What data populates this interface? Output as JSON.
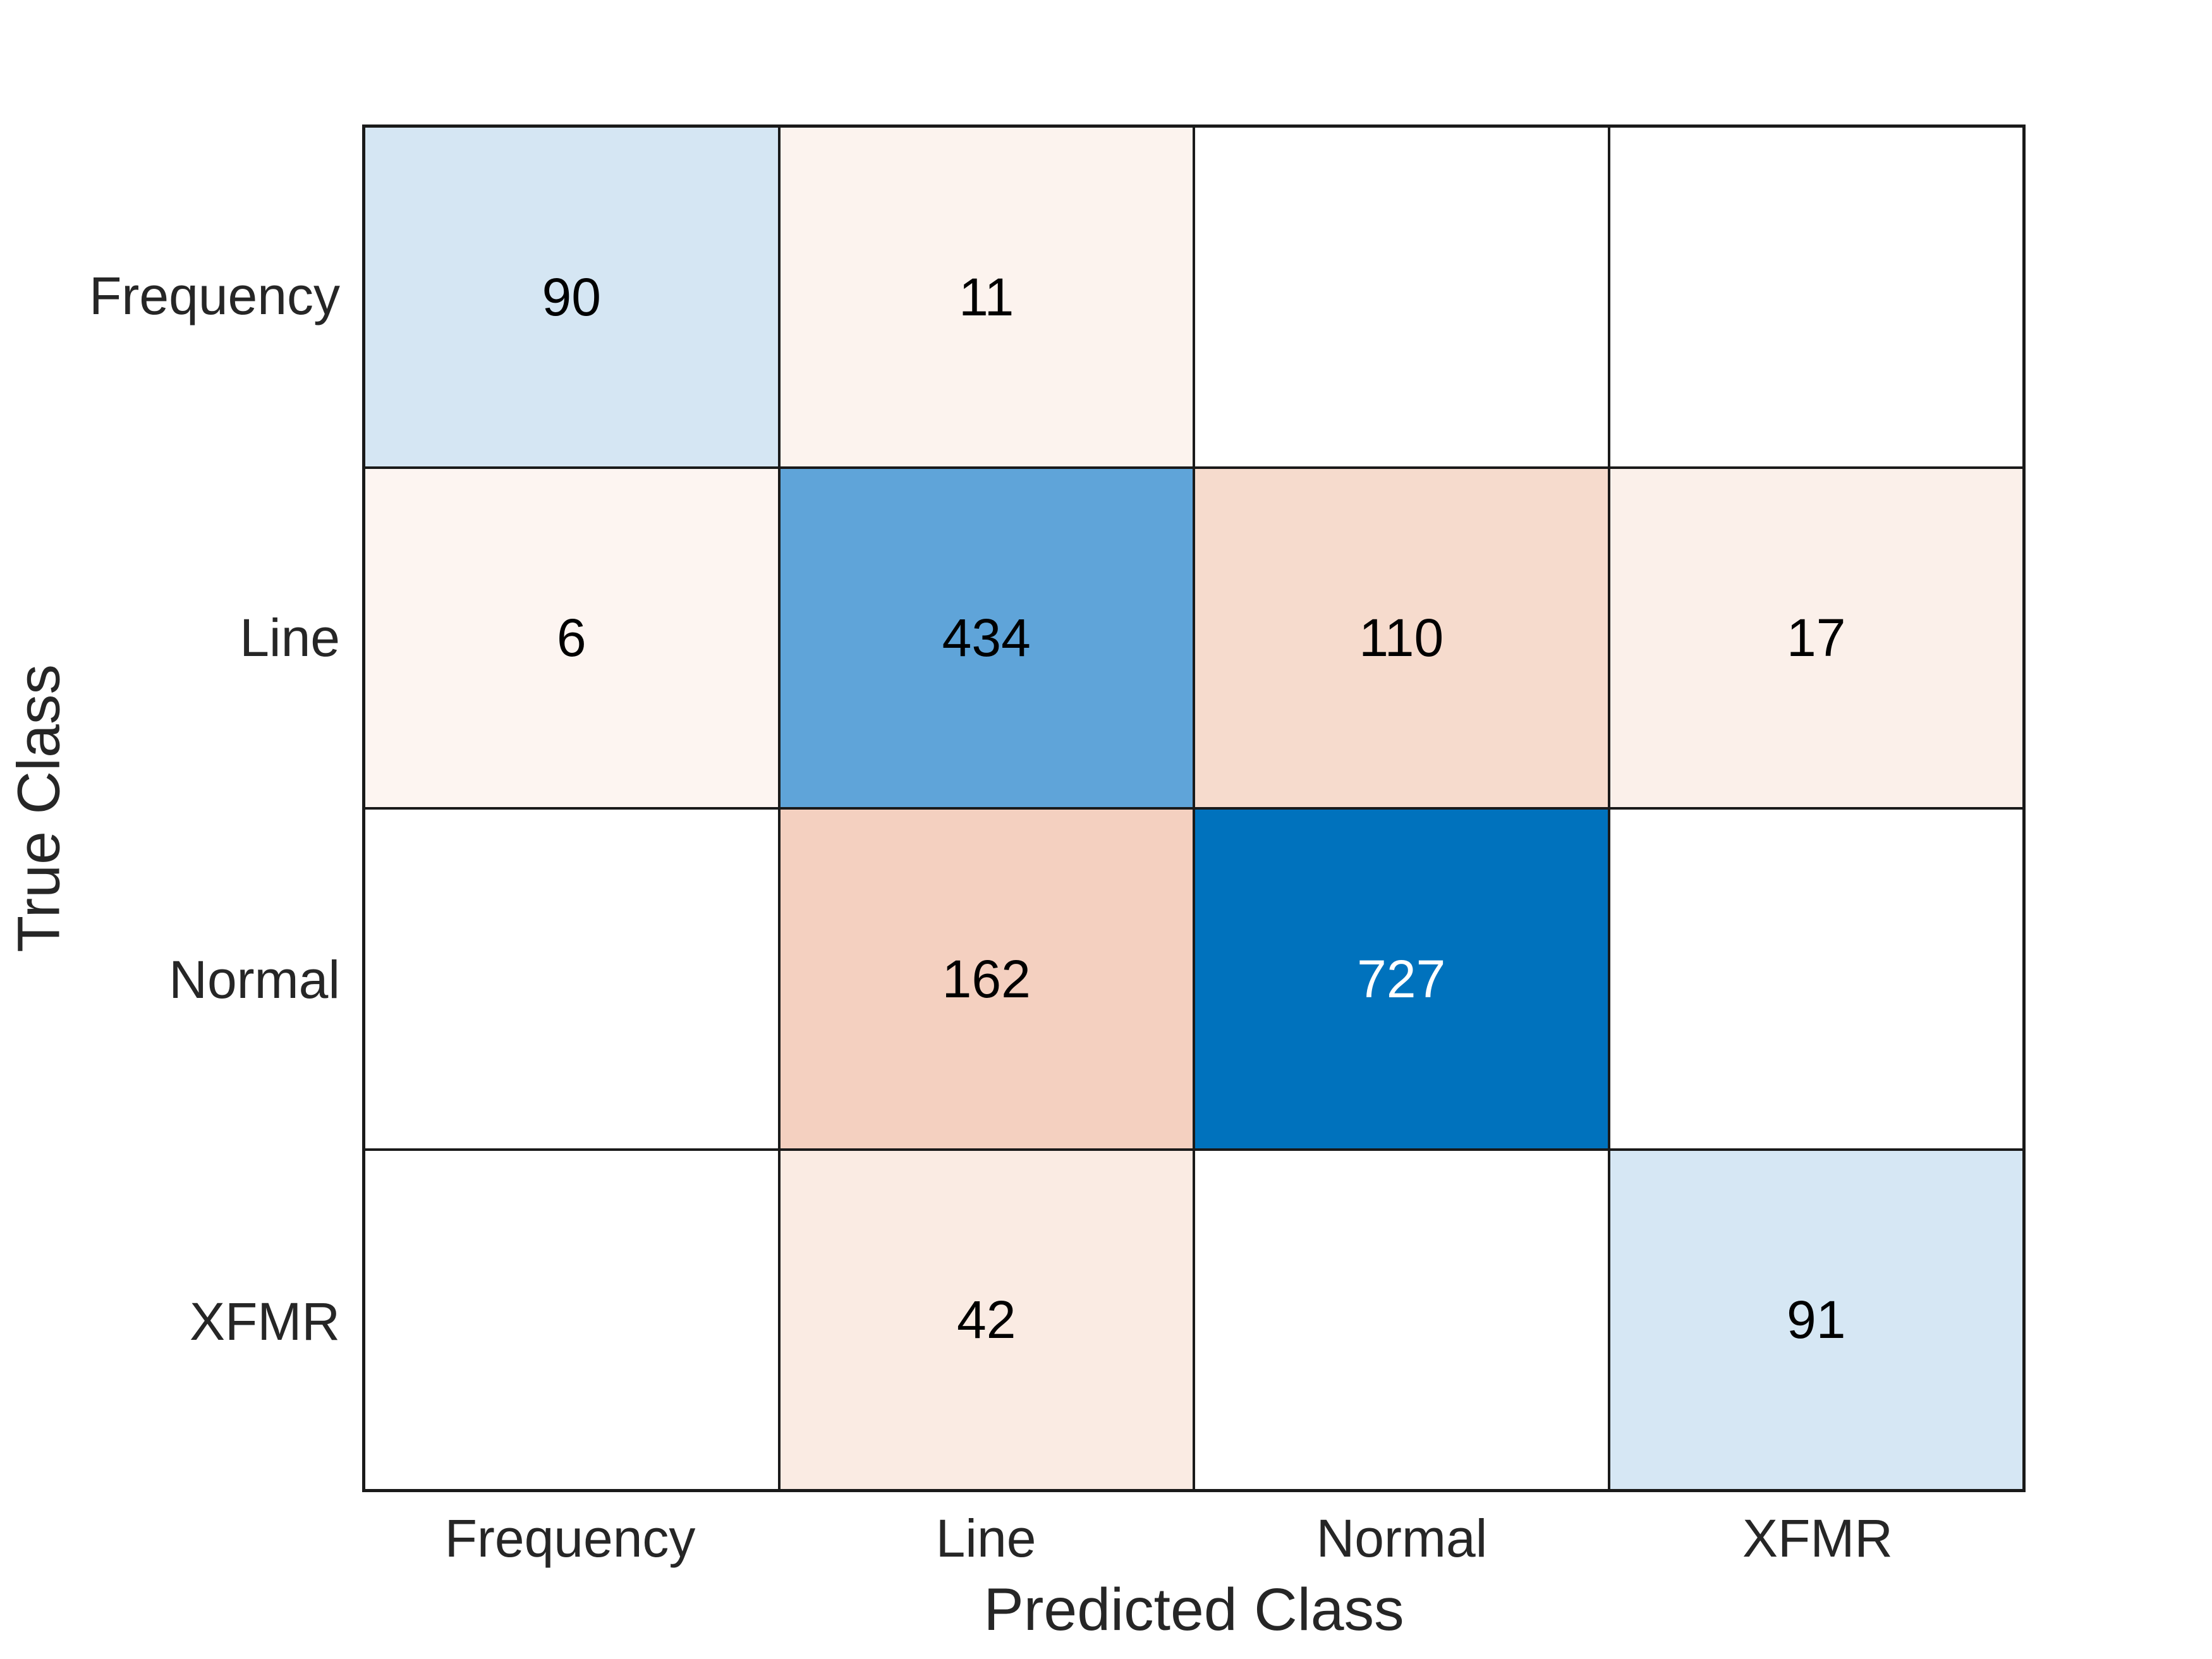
{
  "chart_data": {
    "type": "heatmap",
    "subtype": "confusion_matrix",
    "title": "",
    "xlabel": "Predicted Class",
    "ylabel": "True Class",
    "x_categories": [
      "Frequency",
      "Line",
      "Normal",
      "XFMR"
    ],
    "y_categories": [
      "Frequency",
      "Line",
      "Normal",
      "XFMR"
    ],
    "matrix": [
      [
        90,
        11,
        null,
        null
      ],
      [
        6,
        434,
        110,
        17
      ],
      [
        null,
        162,
        727,
        null
      ],
      [
        null,
        42,
        null,
        91
      ]
    ],
    "cell_bg_colors": [
      [
        "#D5E6F3",
        "#FCF3EE",
        "#FFFFFF",
        "#FFFFFF"
      ],
      [
        "#FDF5F1",
        "#5FA4D9",
        "#F6DBCD",
        "#FBF0EA"
      ],
      [
        "#FFFFFF",
        "#F4D0C0",
        "#0072BD",
        "#FFFFFF"
      ],
      [
        "#FFFFFF",
        "#FAEBE3",
        "#FFFFFF",
        "#D6E7F4"
      ]
    ],
    "cell_text_colors": [
      [
        "#000000",
        "#000000",
        "#000000",
        "#000000"
      ],
      [
        "#000000",
        "#000000",
        "#000000",
        "#000000"
      ],
      [
        "#000000",
        "#000000",
        "#FFFFFF",
        "#000000"
      ],
      [
        "#000000",
        "#000000",
        "#000000",
        "#000000"
      ]
    ],
    "colors": {
      "diagonal_base": "#0072BD",
      "off_diagonal_base": "#D95319",
      "grid_line": "#1A1A1A",
      "axis_text": "#262626",
      "background": "#FFFFFF"
    },
    "legend": "none",
    "grid": "on"
  }
}
